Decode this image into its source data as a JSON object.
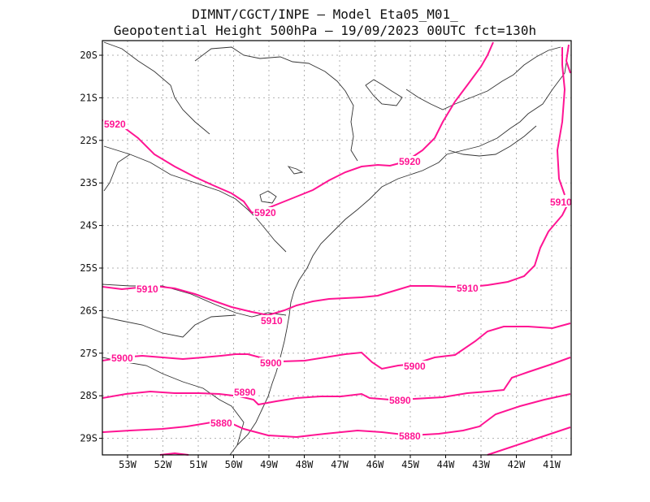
{
  "header": {
    "line1": "DIMNT/CGCT/INPE  –   Model Eta05_M01_",
    "line2": "Geopotential Height 500hPa –  19/09/2023 00UTC fct=130h"
  },
  "colors": {
    "contour": "#ff1493",
    "coast": "#333333",
    "grid": "#b0b0b0"
  },
  "axes": {
    "lat_labels": [
      "20S",
      "21S",
      "22S",
      "23S",
      "24S",
      "25S",
      "26S",
      "27S",
      "28S",
      "29S"
    ],
    "lon_labels": [
      "53W",
      "52W",
      "51W",
      "50W",
      "49W",
      "48W",
      "47W",
      "46W",
      "45W",
      "44W",
      "43W",
      "42W",
      "41W"
    ]
  },
  "contour_labels": [
    {
      "id": "5920-a",
      "text": "5920"
    },
    {
      "id": "5920-b",
      "text": "5920"
    },
    {
      "id": "5920-c",
      "text": "5920"
    },
    {
      "id": "5910-a",
      "text": "5910"
    },
    {
      "id": "5910-b",
      "text": "5910"
    },
    {
      "id": "5910-c",
      "text": "5910"
    },
    {
      "id": "5910-d",
      "text": "5910"
    },
    {
      "id": "5900-a",
      "text": "5900"
    },
    {
      "id": "5900-b",
      "text": "5900"
    },
    {
      "id": "5900-c",
      "text": "5900"
    },
    {
      "id": "5890-a",
      "text": "5890"
    },
    {
      "id": "5890-b",
      "text": "5890"
    },
    {
      "id": "5880-a",
      "text": "5880"
    },
    {
      "id": "5880-b",
      "text": "5880"
    }
  ]
}
